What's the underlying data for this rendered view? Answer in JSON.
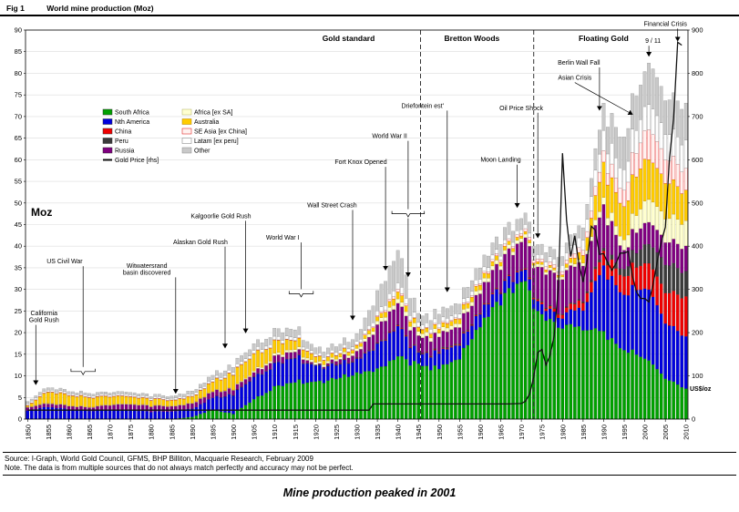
{
  "figure": {
    "fig_label": "Fig 1",
    "title": "World mine production (Moz)",
    "left_axis_unit": "Moz",
    "right_axis_unit": "US$/oz",
    "source": "Source: I-Graph, World Gold Council, GFMS, BHP Billiton, Macquarie Research, February 2009",
    "note": "Note. The data is from multiple sources that do not always match perfectly and accuracy may not be perfect.",
    "caption": "Mine production peaked in 2001"
  },
  "chart_data": {
    "type": "bar",
    "stacked": true,
    "title": "World mine production (Moz)",
    "left_axis": {
      "min": 0,
      "max": 90,
      "step": 5,
      "unit": "Moz"
    },
    "right_axis": {
      "min": 0,
      "max": 900,
      "step": 100,
      "unit": "US$/oz"
    },
    "x_axis": {
      "start": 1850,
      "end": 2010,
      "tick_step": 5
    },
    "x_years": [
      1850,
      1855,
      1860,
      1865,
      1870,
      1875,
      1880,
      1885,
      1890,
      1895,
      1900,
      1905,
      1910,
      1915,
      1920,
      1925,
      1930,
      1935,
      1940,
      1945,
      1950,
      1955,
      1960,
      1965,
      1970,
      1975,
      1980,
      1985,
      1990,
      1995,
      2000,
      2001,
      2005,
      2010
    ],
    "series": [
      {
        "name": "South Africa",
        "color": "#00a000",
        "values": [
          0,
          0,
          0,
          0,
          0,
          0,
          0,
          0,
          0.5,
          2.2,
          1.2,
          4.5,
          7.5,
          9.0,
          8.2,
          9.6,
          10.7,
          11.2,
          14.5,
          12.2,
          11.7,
          14.6,
          21.4,
          27.4,
          32.2,
          22.9,
          21.7,
          21.6,
          19.4,
          16.8,
          13.8,
          13.4,
          9.5,
          7.0
        ]
      },
      {
        "name": "Nth America",
        "color": "#0000dd",
        "values": [
          2.0,
          2.9,
          2.3,
          1.9,
          2.2,
          2.0,
          1.7,
          1.8,
          1.9,
          2.8,
          4.4,
          5.0,
          5.3,
          5.9,
          3.5,
          3.3,
          3.2,
          5.5,
          7.0,
          2.5,
          3.6,
          3.4,
          3.0,
          2.8,
          2.6,
          2.2,
          2.4,
          4.8,
          14.5,
          13.5,
          16.0,
          16.2,
          13.0,
          12.0
        ]
      },
      {
        "name": "China",
        "color": "#ee0000",
        "values": [
          0,
          0,
          0,
          0,
          0,
          0,
          0,
          0,
          0,
          0,
          0,
          0,
          0,
          0,
          0,
          0.1,
          0.1,
          0.1,
          0.2,
          0.1,
          0.2,
          0.2,
          0.2,
          0.2,
          0.2,
          0.4,
          0.9,
          1.9,
          3.2,
          4.5,
          5.8,
          6.0,
          7.2,
          9.2
        ]
      },
      {
        "name": "Peru",
        "color": "#3a3a3a",
        "values": [
          0,
          0,
          0,
          0,
          0,
          0,
          0,
          0,
          0,
          0,
          0.1,
          0.1,
          0.1,
          0.1,
          0.1,
          0.1,
          0.1,
          0.1,
          0.1,
          0.1,
          0.2,
          0.2,
          0.1,
          0.1,
          0.1,
          0.2,
          0.2,
          0.3,
          0.6,
          1.8,
          4.3,
          4.4,
          6.6,
          5.8
        ]
      },
      {
        "name": "Russia",
        "color": "#800080",
        "values": [
          0.8,
          0.8,
          0.8,
          0.8,
          1.1,
          1.3,
          1.3,
          1.2,
          1.2,
          1.4,
          1.2,
          1.0,
          1.6,
          1.5,
          0.1,
          0.8,
          1.5,
          4.0,
          5.0,
          3.5,
          3.5,
          4.0,
          4.5,
          5.5,
          6.5,
          7.5,
          8.3,
          8.7,
          9.7,
          4.6,
          4.9,
          5.0,
          5.3,
          5.8
        ]
      },
      {
        "name": "Africa [ex SA]",
        "color": "#ffffd0",
        "border": "#b0b060",
        "values": [
          0.1,
          0.1,
          0.1,
          0.1,
          0.1,
          0.1,
          0.1,
          0.1,
          0.1,
          0.1,
          0.1,
          0.3,
          0.5,
          0.6,
          0.5,
          0.5,
          0.6,
          0.8,
          1.0,
          0.9,
          0.9,
          0.9,
          0.9,
          0.9,
          0.8,
          0.6,
          0.6,
          0.7,
          1.5,
          2.5,
          5.0,
          5.2,
          5.5,
          5.8
        ]
      },
      {
        "name": "Australia",
        "color": "#ffcc00",
        "border": "#b08000",
        "values": [
          0.3,
          2.7,
          2.4,
          2.2,
          1.9,
          1.6,
          1.4,
          1.3,
          1.5,
          2.2,
          3.5,
          3.9,
          3.0,
          2.1,
          1.2,
          0.8,
          0.7,
          0.9,
          1.6,
          0.9,
          0.9,
          1.1,
          1.1,
          0.9,
          0.6,
          0.5,
          0.5,
          1.9,
          7.8,
          8.1,
          9.6,
          9.1,
          8.4,
          7.0
        ]
      },
      {
        "name": "SE Asia [ex China]",
        "color": "#fff2f0",
        "border": "#dd0000",
        "values": [
          0.1,
          0.1,
          0.1,
          0.1,
          0.1,
          0.1,
          0.1,
          0.1,
          0.1,
          0.1,
          0.1,
          0.1,
          0.1,
          0.1,
          0.1,
          0.1,
          0.2,
          0.3,
          0.6,
          0.1,
          0.3,
          0.3,
          0.4,
          0.5,
          0.6,
          0.7,
          0.8,
          1.2,
          2.5,
          4.0,
          6.5,
          6.8,
          5.5,
          5.0
        ]
      },
      {
        "name": "Latam [ex peru]",
        "color": "#ffffff",
        "border": "#777777",
        "values": [
          0.4,
          0.4,
          0.4,
          0.4,
          0.4,
          0.4,
          0.4,
          0.4,
          0.5,
          0.5,
          0.6,
          0.7,
          0.8,
          0.7,
          0.6,
          0.7,
          0.7,
          1.0,
          1.5,
          1.0,
          1.0,
          1.0,
          1.0,
          1.0,
          0.9,
          1.0,
          1.5,
          2.5,
          4.5,
          5.0,
          5.5,
          5.8,
          6.0,
          6.5
        ]
      },
      {
        "name": "Other",
        "color": "#c9c9c9",
        "border": "#8a8a8a",
        "values": [
          0.5,
          0.6,
          0.5,
          0.5,
          0.5,
          0.5,
          0.5,
          0.5,
          0.7,
          1.0,
          1.2,
          1.5,
          1.8,
          1.9,
          1.3,
          1.4,
          1.8,
          4.5,
          7.5,
          2.0,
          2.2,
          2.4,
          2.6,
          2.8,
          2.6,
          2.2,
          2.1,
          3.0,
          6.0,
          8.0,
          8.0,
          9.5,
          8.0,
          8.5
        ]
      }
    ],
    "price_line": {
      "name": "Gold Price [rhs]",
      "color": "#111111",
      "unit": "US$/oz",
      "years": [
        1850,
        1933,
        1934,
        1967,
        1970,
        1971,
        1972,
        1973,
        1974,
        1975,
        1976,
        1977,
        1978,
        1979,
        1980,
        1981,
        1982,
        1983,
        1984,
        1985,
        1986,
        1987,
        1988,
        1989,
        1990,
        1991,
        1992,
        1993,
        1994,
        1995,
        1996,
        1997,
        1998,
        1999,
        2000,
        2001,
        2002,
        2003,
        2004,
        2005,
        2006,
        2007,
        2008,
        2009
      ],
      "values": [
        20.7,
        20.7,
        35,
        35,
        36,
        41,
        58,
        97,
        154,
        161,
        125,
        148,
        193,
        306,
        615,
        460,
        376,
        424,
        360,
        317,
        368,
        446,
        437,
        381,
        383,
        362,
        344,
        360,
        384,
        384,
        388,
        331,
        294,
        279,
        279,
        271,
        310,
        363,
        409,
        444,
        603,
        695,
        872,
        865
      ]
    },
    "periods": [
      {
        "label": "Gold standard",
        "center_year": 1928
      },
      {
        "label": "Bretton Woods",
        "center_year": 1958
      },
      {
        "label": "Floating Gold",
        "center_year": 1990
      }
    ],
    "dividers": [
      1945.5,
      1973
    ],
    "legend": {
      "col1": [
        {
          "label": "South Africa",
          "color": "#00a000"
        },
        {
          "label": "Nth America",
          "color": "#0000dd"
        },
        {
          "label": "China",
          "color": "#ee0000"
        },
        {
          "label": "Peru",
          "color": "#3a3a3a"
        },
        {
          "label": "Russia",
          "color": "#800080"
        },
        {
          "label": "Gold Price [rhs]",
          "color": "#111111",
          "swatch": "line"
        }
      ],
      "col2": [
        {
          "label": "Africa [ex SA]",
          "color": "#ffffd0",
          "border": "#b0b060"
        },
        {
          "label": "Australia",
          "color": "#ffcc00",
          "border": "#b08000"
        },
        {
          "label": "SE Asia [ex China]",
          "color": "#fff2f0",
          "border": "#dd0000"
        },
        {
          "label": "Latam [ex peru]",
          "color": "#ffffff",
          "border": "#777777"
        },
        {
          "label": "Other",
          "color": "#c9c9c9",
          "border": "#8a8a8a"
        }
      ]
    },
    "annotations": [
      {
        "lines": [
          "California",
          "Gold Rush"
        ],
        "text_year": 1854,
        "text_moz": 24,
        "target_year": 1852,
        "target_moz": 8
      },
      {
        "lines": [
          "US Civil War"
        ],
        "text_year": 1859,
        "text_moz": 36,
        "bracket": {
          "from": 1861,
          "to": 1866,
          "moz": 11
        }
      },
      {
        "lines": [
          "Witwatersrand",
          "basin discovered"
        ],
        "text_year": 1879,
        "text_moz": 35,
        "target_year": 1886,
        "target_moz": 6
      },
      {
        "lines": [
          "Alaskan Gold Rush"
        ],
        "text_year": 1892,
        "text_moz": 40.5,
        "target_year": 1898,
        "target_moz": 16.5
      },
      {
        "lines": [
          "Kalgoorlie Gold Rush"
        ],
        "text_year": 1897,
        "text_moz": 46.5,
        "target_year": 1903,
        "target_moz": 20
      },
      {
        "lines": [
          "World War I"
        ],
        "text_year": 1912,
        "text_moz": 41.5,
        "bracket": {
          "from": 1914,
          "to": 1919,
          "moz": 29
        }
      },
      {
        "lines": [
          "Wall Street Crash"
        ],
        "text_year": 1924,
        "text_moz": 49,
        "target_year": 1929,
        "target_moz": 23
      },
      {
        "lines": [
          "Fort Knox Opened"
        ],
        "text_year": 1931,
        "text_moz": 59,
        "target_year": 1937,
        "target_moz": 34.5
      },
      {
        "lines": [
          "World War II"
        ],
        "text_year": 1938,
        "text_moz": 65,
        "bracket": {
          "from": 1939,
          "to": 1946,
          "moz": 47.5
        },
        "target_moz": 33
      },
      {
        "lines": [
          "Driefontein est'"
        ],
        "text_year": 1946,
        "text_moz": 72,
        "target_year": 1952,
        "target_moz": 29.5
      },
      {
        "lines": [
          "Moon Landing"
        ],
        "text_year": 1965,
        "text_moz": 59.5,
        "target_year": 1969,
        "target_moz": 49
      },
      {
        "lines": [
          "Oil Price Shock"
        ],
        "text_year": 1970,
        "text_moz": 71.5,
        "target_year": 1974,
        "target_moz": 42
      },
      {
        "lines": [
          "Asian Crisis"
        ],
        "text_year": 1983,
        "text_moz": 78.5,
        "target_year": 1997,
        "target_moz": 70.5
      },
      {
        "lines": [
          "Berlin Wall Fall"
        ],
        "text_year": 1984,
        "text_moz": 82,
        "target_year": 1989,
        "target_moz": 71.5
      },
      {
        "lines": [
          "9 / 11"
        ],
        "text_year": 2002,
        "text_moz": 87,
        "target_year": 2001,
        "target_moz": 84
      },
      {
        "lines": [
          "Financial Crisis"
        ],
        "text_year": 2005,
        "text_moz": 91,
        "target_year": 2008,
        "target_moz": 87.5
      }
    ]
  }
}
